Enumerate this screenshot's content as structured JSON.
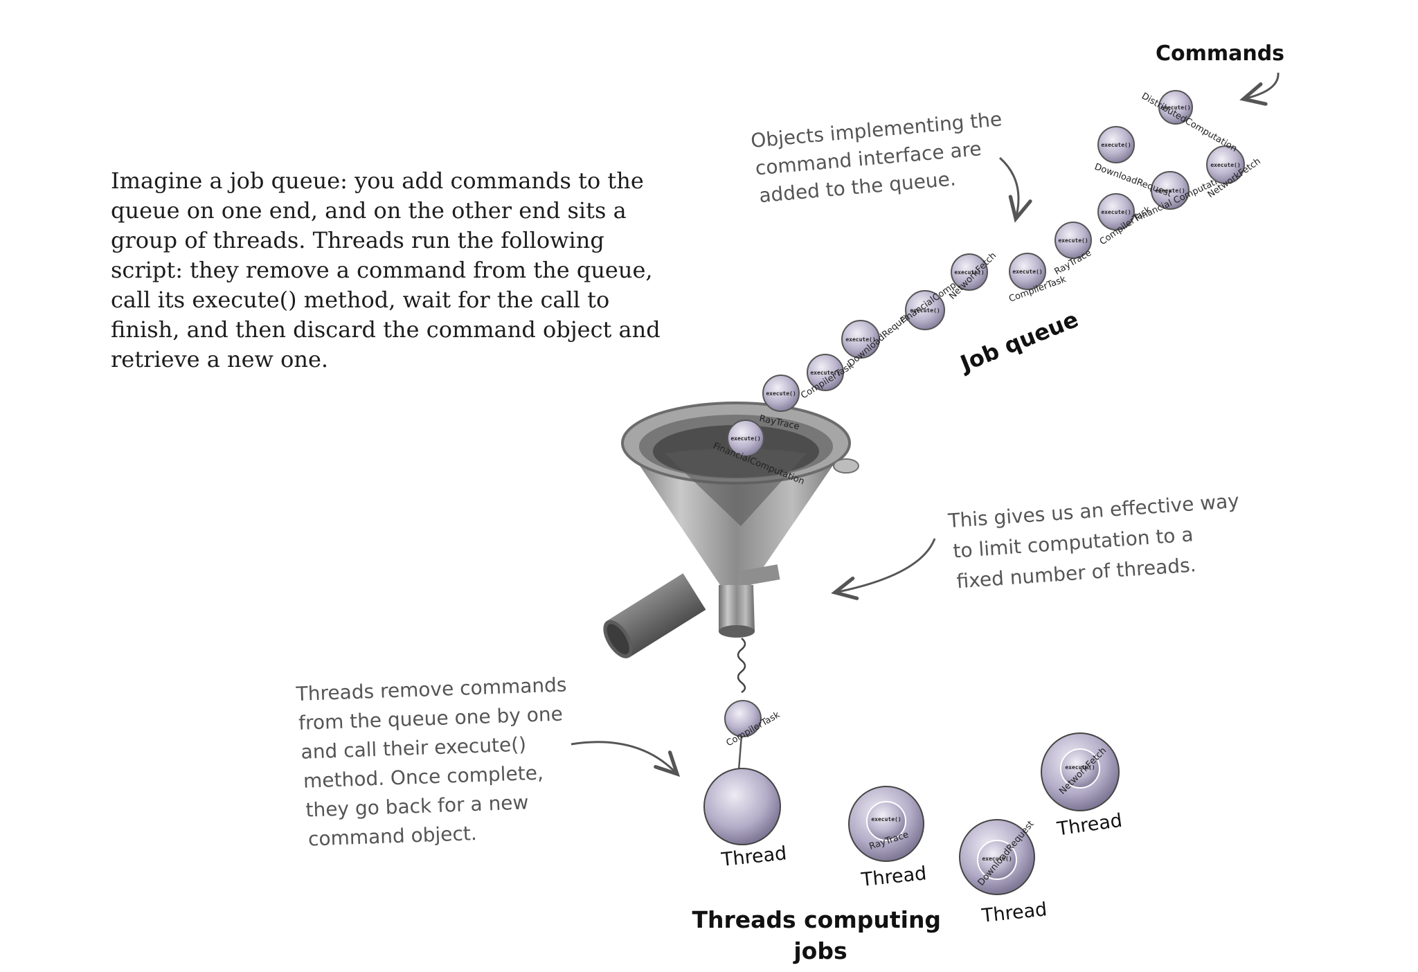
{
  "intro_text": "Imagine a job queue: you add commands to the queue on one end, and on the other end sits a group of threads. Threads run the following script: they remove a command from the queue, call its execute() method, wait for the call to finish, and then discard the command object and retrieve a new one.",
  "labels": {
    "commands": "Commands",
    "job_queue": "Job queue",
    "threads_computing_line1": "Threads computing",
    "threads_computing_line2": "jobs"
  },
  "notes": {
    "objects": [
      "Objects implementing the",
      "command interface are",
      "added to the queue."
    ],
    "effective": [
      "This gives us an effective way",
      "to limit computation to a",
      "fixed number of threads."
    ],
    "threads_remove": [
      "Threads remove commands",
      "from the queue one by one",
      "and call their execute()",
      "method. Once complete,",
      "they go back for a new",
      "command object."
    ]
  },
  "method_label": "execute()",
  "queue_commands": [
    {
      "name": "FinancialComputation"
    },
    {
      "name": "RayTrace"
    },
    {
      "name": "CompilerTask"
    },
    {
      "name": "DownloadRequest"
    },
    {
      "name": "FinancialComputation"
    },
    {
      "name": "NetworkFetch"
    },
    {
      "name": "CompilerTask"
    },
    {
      "name": "RayTrace"
    },
    {
      "name": "CompilerTask"
    },
    {
      "name": "Financial Computation"
    },
    {
      "name": "NetworkFetch"
    },
    {
      "name": "DownloadRequest"
    },
    {
      "name": "DistributedComputation"
    }
  ],
  "falling_command": "CompilerTask",
  "threads": [
    {
      "label": "Thread",
      "job": ""
    },
    {
      "label": "Thread",
      "job": "RayTrace"
    },
    {
      "label": "Thread",
      "job": "DownloadRequest"
    },
    {
      "label": "Thread",
      "job": "NetworkFetch"
    }
  ],
  "colors": {
    "sphere_light": "#e4e0ee",
    "sphere_dark": "#8f88a9",
    "note_text": "#555555",
    "funnel": "#9a9a9a"
  }
}
